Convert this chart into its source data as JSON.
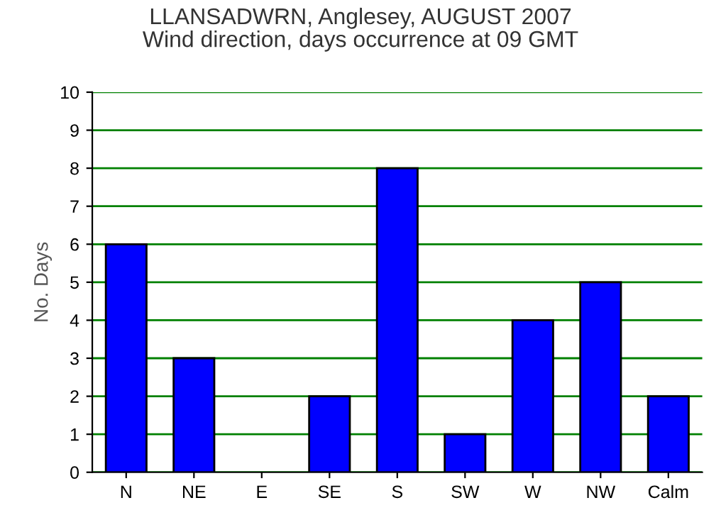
{
  "chart_data": {
    "type": "bar",
    "title": "LLANSADWRN, Anglesey, AUGUST 2007\nWind direction, days occurrence at 09 GMT",
    "ylabel": "No. Days",
    "categories": [
      "N",
      "NE",
      "E",
      "SE",
      "S",
      "SW",
      "W",
      "NW",
      "Calm"
    ],
    "values": [
      6,
      3,
      0,
      2,
      8,
      1,
      4,
      5,
      2
    ],
    "color": "#0000ff",
    "ylim": [
      0,
      10
    ],
    "yticks": [
      0,
      1,
      2,
      3,
      4,
      5,
      6,
      7,
      8,
      9,
      10
    ],
    "grid": "y"
  }
}
